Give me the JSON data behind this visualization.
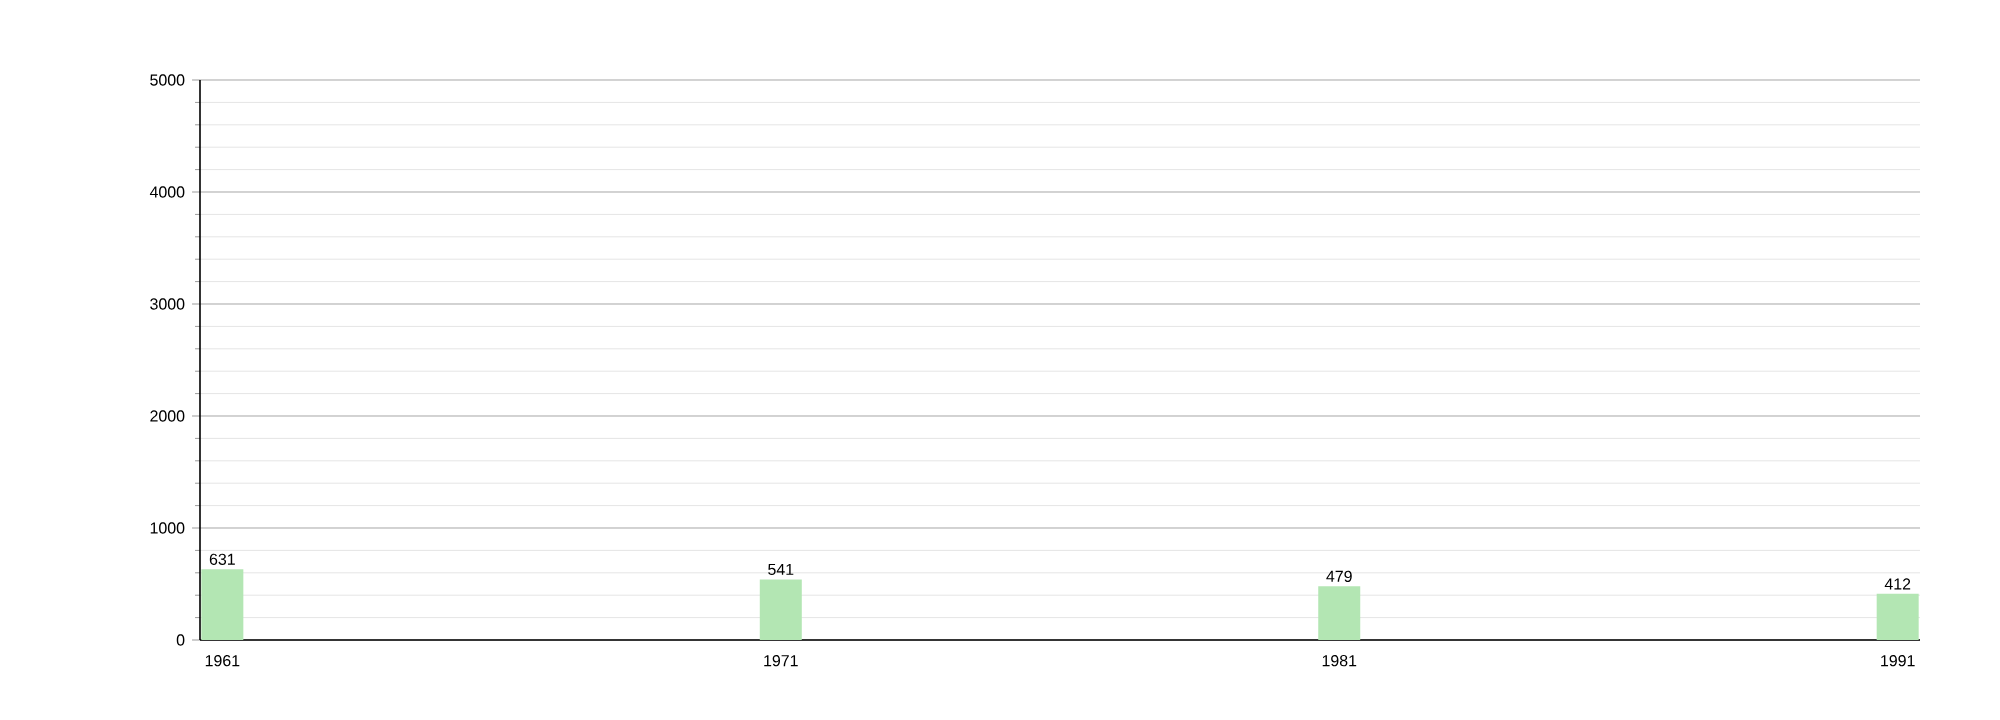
{
  "chart_data": {
    "type": "bar",
    "x": [
      1961,
      1971,
      1981,
      1991
    ],
    "values": [
      631,
      541,
      479,
      412
    ],
    "color": "#b3e6b3",
    "data_labels": true,
    "grid": "y",
    "xlim": [
      1960.6,
      1991.4
    ],
    "xticks": [
      1961,
      1971,
      1981,
      1991
    ],
    "ylim": [
      0,
      5000
    ],
    "yticks": [
      0,
      {
        "value": 200,
        "label": null
      },
      {
        "value": 400,
        "label": null
      },
      {
        "value": 600,
        "label": null
      },
      {
        "value": 800,
        "label": null
      },
      1000,
      {
        "value": 1200,
        "label": null
      },
      {
        "value": 1400,
        "label": null
      },
      {
        "value": 1600,
        "label": null
      },
      {
        "value": 1800,
        "label": null
      },
      2000,
      {
        "value": 2200,
        "label": null
      },
      {
        "value": 2400,
        "label": null
      },
      {
        "value": 2600,
        "label": null
      },
      {
        "value": 2800,
        "label": null
      },
      3000,
      {
        "value": 3200,
        "label": null
      },
      {
        "value": 3400,
        "label": null
      },
      {
        "value": 3600,
        "label": null
      },
      {
        "value": 3800,
        "label": null
      },
      4000,
      {
        "value": 4200,
        "label": null
      },
      {
        "value": 4400,
        "label": null
      },
      {
        "value": 4600,
        "label": null
      },
      {
        "value": 4800,
        "label": null
      },
      5000
    ]
  }
}
